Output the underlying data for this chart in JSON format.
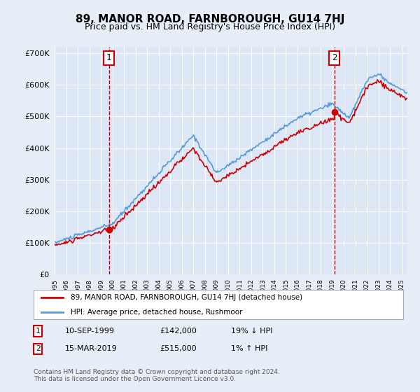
{
  "title": "89, MANOR ROAD, FARNBOROUGH, GU14 7HJ",
  "subtitle": "Price paid vs. HM Land Registry's House Price Index (HPI)",
  "background_color": "#e8eef7",
  "plot_bg_color": "#dce6f5",
  "ylabel_format": "£{0}K",
  "yticks": [
    0,
    100000,
    200000,
    300000,
    400000,
    500000,
    600000,
    700000
  ],
  "ylim": [
    0,
    720000
  ],
  "sale1_date": 1999.69,
  "sale1_price": 142000,
  "sale2_date": 2019.2,
  "sale2_price": 515000,
  "legend_line1": "89, MANOR ROAD, FARNBOROUGH, GU14 7HJ (detached house)",
  "legend_line2": "HPI: Average price, detached house, Rushmoor",
  "annotation1_text": "1",
  "annotation2_text": "2",
  "table_row1": "1    10-SEP-1999         £142,000        19% ↓ HPI",
  "table_row2": "2    15-MAR-2019         £515,000          1% ↑ HPI",
  "footer": "Contains HM Land Registry data © Crown copyright and database right 2024.\nThis data is licensed under the Open Government Licence v3.0.",
  "line_color_red": "#cc0000",
  "line_color_blue": "#5599dd",
  "box_color": "#cc0000"
}
